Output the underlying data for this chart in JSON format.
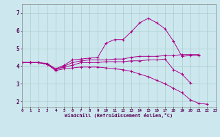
{
  "xlabel": "Windchill (Refroidissement éolien,°C)",
  "background_color": "#cce8ee",
  "grid_color": "#aacccc",
  "line_color": "#aa0088",
  "x_ticks": [
    0,
    1,
    2,
    3,
    4,
    5,
    6,
    7,
    8,
    9,
    10,
    11,
    12,
    13,
    14,
    15,
    16,
    17,
    18,
    19,
    20,
    21,
    22,
    23
  ],
  "y_ticks": [
    2,
    3,
    4,
    5,
    6,
    7
  ],
  "xlim": [
    0,
    23
  ],
  "ylim": [
    1.7,
    7.5
  ],
  "series": [
    [
      4.2,
      4.2,
      4.2,
      4.15,
      3.85,
      4.05,
      4.35,
      4.4,
      4.45,
      4.5,
      5.3,
      5.5,
      5.5,
      5.95,
      6.45,
      6.7,
      6.45,
      6.1,
      5.4,
      4.55,
      4.6,
      4.6,
      null,
      null
    ],
    [
      4.2,
      4.2,
      4.2,
      4.1,
      3.8,
      4.0,
      4.2,
      4.3,
      4.35,
      4.35,
      4.35,
      4.4,
      4.4,
      4.5,
      4.55,
      4.55,
      4.55,
      4.6,
      4.6,
      4.65,
      4.65,
      4.65,
      null,
      null
    ],
    [
      4.2,
      4.2,
      4.2,
      4.1,
      3.8,
      3.95,
      4.05,
      4.2,
      4.2,
      4.2,
      4.25,
      4.25,
      4.25,
      4.3,
      4.3,
      4.35,
      4.35,
      4.4,
      3.8,
      3.55,
      3.05,
      null,
      null,
      null
    ],
    [
      4.2,
      4.2,
      4.2,
      4.1,
      3.75,
      3.85,
      3.9,
      3.95,
      3.95,
      3.95,
      3.9,
      3.85,
      3.8,
      3.7,
      3.55,
      3.4,
      3.2,
      3.0,
      2.75,
      2.5,
      2.1,
      1.9,
      1.85,
      null
    ]
  ]
}
